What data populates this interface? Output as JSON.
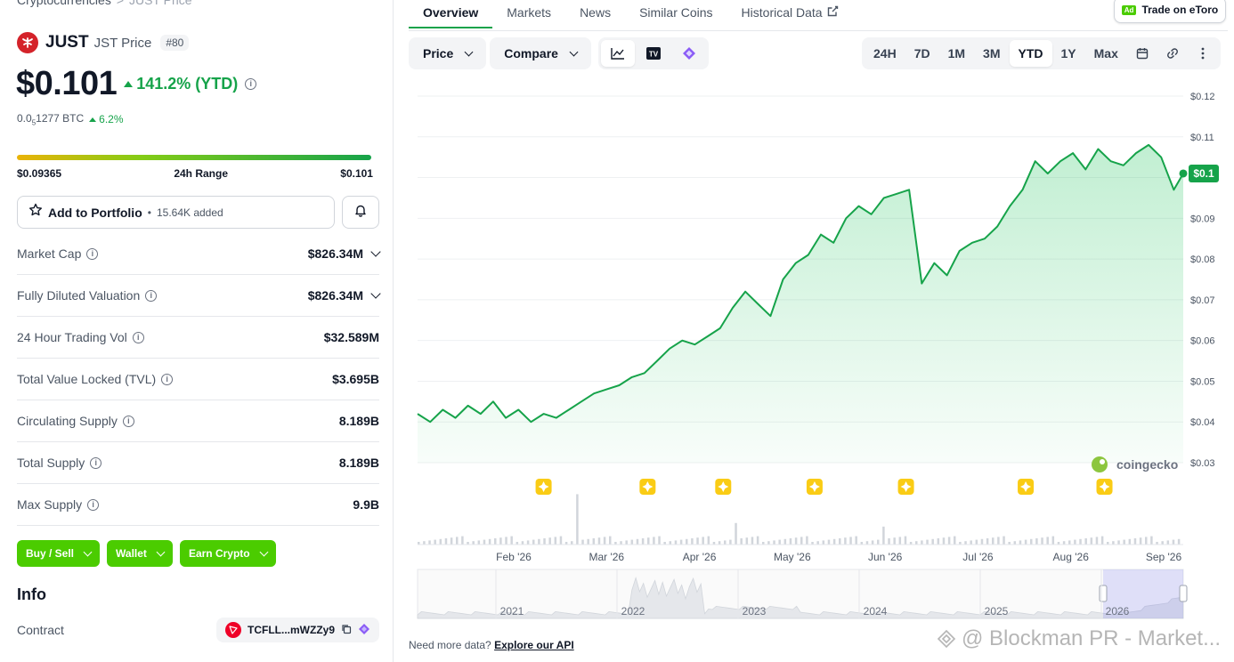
{
  "breadcrumb": {
    "parent": "Cryptocurrencies",
    "separator": ">",
    "current": "JUST Price"
  },
  "coin": {
    "name": "JUST",
    "label": "JST Price",
    "rank": "#80",
    "price": "$0.101",
    "change_pct": "141.2% (YTD)",
    "btc_price_prefix": "0.0",
    "btc_price_sub": "5",
    "btc_price_suffix": "1277 BTC",
    "btc_change": "6.2%"
  },
  "range_24h": {
    "low": "$0.09365",
    "label": "24h Range",
    "high": "$0.101"
  },
  "portfolio": {
    "label": "Add to Portfolio",
    "sep": "•",
    "added": "15.64K added"
  },
  "stats": [
    {
      "label": "Market Cap",
      "value": "$826.34M",
      "expandable": true
    },
    {
      "label": "Fully Diluted Valuation",
      "value": "$826.34M",
      "expandable": true
    },
    {
      "label": "24 Hour Trading Vol",
      "value": "$32.589M",
      "expandable": false
    },
    {
      "label": "Total Value Locked (TVL)",
      "value": "$3.695B",
      "expandable": false
    },
    {
      "label": "Circulating Supply",
      "value": "8.189B",
      "expandable": false
    },
    {
      "label": "Total Supply",
      "value": "8.189B",
      "expandable": false
    },
    {
      "label": "Max Supply",
      "value": "9.9B",
      "expandable": false
    }
  ],
  "cta_buttons": [
    "Buy / Sell",
    "Wallet",
    "Earn Crypto"
  ],
  "info": {
    "heading": "Info",
    "contract_label": "Contract",
    "contract_value": "TCFLL...mWZZy9"
  },
  "tabs": [
    "Overview",
    "Markets",
    "News",
    "Similar Coins",
    "Historical Data"
  ],
  "etoro": {
    "ad": "Ad",
    "label": "Trade on eToro"
  },
  "toolbar": {
    "price_btn": "Price",
    "compare_btn": "Compare",
    "tv_label": "TV"
  },
  "ranges": [
    "24H",
    "7D",
    "1M",
    "3M",
    "YTD",
    "1Y",
    "Max"
  ],
  "active_range": "YTD",
  "colors": {
    "accent": "#16a34a",
    "cta": "#4bcc00",
    "line": "#16a34a"
  },
  "chart_data": {
    "type": "area",
    "currency": "USD",
    "ylim": [
      0.03,
      0.12
    ],
    "y_ticks": [
      "$0.12",
      "$0.11",
      "$0.10",
      "$0.09",
      "$0.08",
      "$0.07",
      "$0.06",
      "$0.05",
      "$0.04",
      "$0.03"
    ],
    "x_ticks": [
      "Feb '26",
      "Mar '26",
      "Apr '26",
      "May '26",
      "Jun '26",
      "Jul '26",
      "Aug '26",
      "Sep '26"
    ],
    "last_label": "$0.1",
    "watermark": "coingecko",
    "x": [
      "2026-01-01",
      "2026-01-05",
      "2026-01-09",
      "2026-01-13",
      "2026-01-17",
      "2026-01-21",
      "2026-01-25",
      "2026-01-29",
      "2026-02-02",
      "2026-02-06",
      "2026-02-10",
      "2026-02-14",
      "2026-02-18",
      "2026-02-22",
      "2026-02-26",
      "2026-03-02",
      "2026-03-06",
      "2026-03-10",
      "2026-03-14",
      "2026-03-18",
      "2026-03-22",
      "2026-03-26",
      "2026-03-30",
      "2026-04-03",
      "2026-04-07",
      "2026-04-11",
      "2026-04-15",
      "2026-04-19",
      "2026-04-23",
      "2026-04-27",
      "2026-05-01",
      "2026-05-05",
      "2026-05-09",
      "2026-05-13",
      "2026-05-17",
      "2026-05-21",
      "2026-05-25",
      "2026-05-29",
      "2026-06-02",
      "2026-06-06",
      "2026-06-10",
      "2026-06-14",
      "2026-06-18",
      "2026-06-22",
      "2026-06-26",
      "2026-06-30",
      "2026-07-04",
      "2026-07-08",
      "2026-07-12",
      "2026-07-16",
      "2026-07-20",
      "2026-07-24",
      "2026-07-28",
      "2026-08-01",
      "2026-08-05",
      "2026-08-09",
      "2026-08-13",
      "2026-08-17",
      "2026-08-21",
      "2026-08-25",
      "2026-08-29",
      "2026-09-01"
    ],
    "values": [
      0.042,
      0.04,
      0.043,
      0.041,
      0.044,
      0.042,
      0.045,
      0.041,
      0.043,
      0.04,
      0.042,
      0.041,
      0.043,
      0.045,
      0.047,
      0.048,
      0.049,
      0.051,
      0.052,
      0.055,
      0.058,
      0.06,
      0.059,
      0.061,
      0.063,
      0.068,
      0.072,
      0.069,
      0.066,
      0.075,
      0.079,
      0.081,
      0.086,
      0.084,
      0.09,
      0.093,
      0.091,
      0.095,
      0.096,
      0.097,
      0.074,
      0.079,
      0.076,
      0.082,
      0.084,
      0.085,
      0.088,
      0.093,
      0.097,
      0.104,
      0.101,
      0.104,
      0.106,
      0.102,
      0.107,
      0.104,
      0.103,
      0.106,
      0.108,
      0.105,
      0.097,
      0.101
    ],
    "event_markers": [
      "2026-02-10",
      "2026-03-15",
      "2026-04-08",
      "2026-05-07",
      "2026-06-05",
      "2026-07-13",
      "2026-08-07"
    ],
    "navigator": {
      "x_ticks": [
        "2021",
        "2022",
        "2023",
        "2024",
        "2025",
        "2026"
      ]
    }
  },
  "footer": {
    "text": "Need more data?",
    "link": "Explore our API"
  },
  "watermark": "@ Blockman PR - Market..."
}
